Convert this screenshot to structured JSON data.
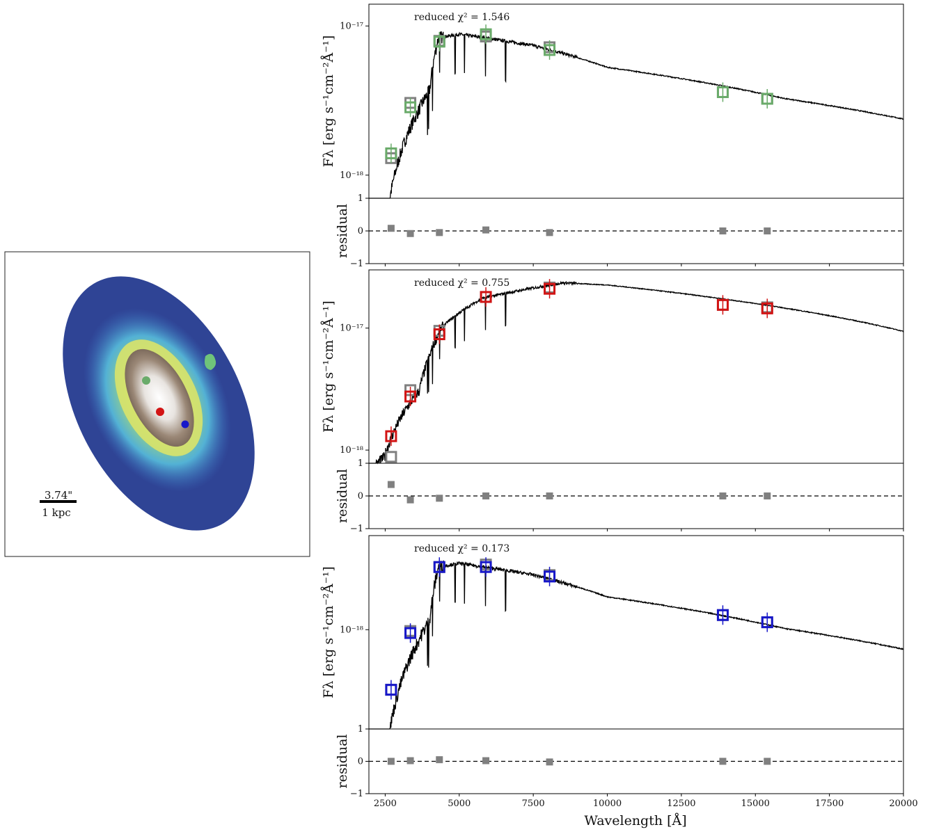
{
  "colors": {
    "model": "#000000",
    "observed": "#808080",
    "residual_marker": "#808080",
    "panel_green": "#6aab6a",
    "panel_red": "#d21414",
    "panel_blue": "#1717c9",
    "map_background": "#2f4495",
    "map_mid": "#3e9bd6",
    "map_yellow": "#d9e36a",
    "map_core": "#8a7766"
  },
  "galaxy_map": {
    "scale_arcsec": "3.74\"",
    "scale_kpc": "1 kpc",
    "markers": [
      {
        "name": "green-region-marker",
        "color": "#6aab6a"
      },
      {
        "name": "red-region-marker",
        "color": "#d21414"
      },
      {
        "name": "blue-region-marker",
        "color": "#1717c9"
      }
    ]
  },
  "chart_data": [
    {
      "type": "line",
      "panel": "top",
      "title": "",
      "chi2_label": "reduced χ² = 1.546",
      "marker_color": "#6aab6a",
      "xlabel": "Wavelength [Å]",
      "ylabel": "Fλ [erg s⁻¹cm⁻²Å⁻¹]",
      "xlim": [
        1950,
        20000
      ],
      "ylim": [
        7e-19,
        1.4e-17
      ],
      "yscale": "log",
      "y_ticks": [
        {
          "value": 1e-17,
          "label": "10⁻¹⁷"
        },
        {
          "value": 1e-18,
          "label": "10⁻¹⁸"
        }
      ],
      "model_template": "old",
      "model_norm": 8.8e-18,
      "observed_model_points": {
        "x": [
          2700,
          3350,
          4330,
          5900,
          8050,
          13900,
          15400
        ],
        "y": [
          1.3e-18,
          3.05e-18,
          7.95e-18,
          8.5e-18,
          7.2e-18,
          3.6e-18,
          3.25e-18
        ]
      },
      "observed_data_points": {
        "x": [
          2700,
          3350,
          4330,
          5900,
          8050,
          13900,
          15400
        ],
        "y": [
          1.4e-18,
          2.85e-18,
          7.85e-18,
          8.8e-18,
          6.9e-18,
          3.6e-18,
          3.25e-18
        ]
      },
      "residual": {
        "ylabel": "residual",
        "ylim": [
          -1,
          1
        ],
        "y_ticks": [
          -1,
          0,
          1
        ],
        "x": [
          2700,
          3350,
          4330,
          5900,
          8050,
          13900,
          15400
        ],
        "values": [
          0.08,
          -0.08,
          -0.05,
          0.03,
          -0.05,
          0.0,
          0.0
        ]
      }
    },
    {
      "type": "line",
      "panel": "middle",
      "title": "",
      "chi2_label": "reduced χ² = 0.755",
      "marker_color": "#d21414",
      "xlabel": "Wavelength [Å]",
      "ylabel": "Fλ [erg s⁻¹cm⁻²Å⁻¹]",
      "xlim": [
        1950,
        20000
      ],
      "ylim": [
        7.8e-19,
        3e-17
      ],
      "yscale": "log",
      "y_ticks": [
        {
          "value": 1e-17,
          "label": "10⁻¹⁷"
        },
        {
          "value": 1e-18,
          "label": "10⁻¹⁸"
        }
      ],
      "model_template": "intermediate",
      "model_norm": 2.35e-17,
      "observed_model_points": {
        "x": [
          2700,
          3350,
          4330,
          5900,
          8050,
          13900,
          15400
        ],
        "y": [
          8.8e-19,
          3.1e-18,
          9.5e-18,
          1.8e-17,
          2.15e-17,
          1.55e-17,
          1.48e-17
        ]
      },
      "observed_data_points": {
        "x": [
          2700,
          3350,
          4330,
          5900,
          8050,
          13900,
          15400
        ],
        "y": [
          1.3e-18,
          2.75e-18,
          8.9e-18,
          1.8e-17,
          2.1e-17,
          1.55e-17,
          1.45e-17
        ]
      },
      "residual": {
        "ylabel": "residual",
        "ylim": [
          -1,
          1
        ],
        "y_ticks": [
          -1,
          0,
          1
        ],
        "x": [
          2700,
          3350,
          4330,
          5900,
          8050,
          13900,
          15400
        ],
        "values": [
          0.35,
          -0.12,
          -0.07,
          0.0,
          0.0,
          0.0,
          0.0
        ]
      }
    },
    {
      "type": "line",
      "panel": "bottom",
      "title": "",
      "chi2_label": "reduced χ² = 0.173",
      "marker_color": "#1717c9",
      "xlabel": "Wavelength [Å]",
      "ylabel": "Fλ [erg s⁻¹cm⁻²Å⁻¹]",
      "xlim": [
        1950,
        20000
      ],
      "ylim": [
        2.2e-19,
        4.2e-18
      ],
      "yscale": "log",
      "y_ticks": [
        {
          "value": 1e-18,
          "label": "10⁻¹⁸"
        }
      ],
      "model_template": "old",
      "model_norm": 2.75e-18,
      "observed_model_points": {
        "x": [
          2700,
          3350,
          4330,
          5900,
          8050,
          13900,
          15400
        ],
        "y": [
          4e-19,
          9.8e-19,
          2.6e-18,
          2.7e-18,
          2.3e-18,
          1.25e-18,
          1.12e-18
        ]
      },
      "observed_data_points": {
        "x": [
          2700,
          3350,
          4330,
          5900,
          8050,
          13900,
          15400
        ],
        "y": [
          4e-19,
          9.5e-19,
          2.6e-18,
          2.6e-18,
          2.25e-18,
          1.25e-18,
          1.12e-18
        ]
      },
      "residual": {
        "ylabel": "residual",
        "ylim": [
          -1,
          1
        ],
        "y_ticks": [
          -1,
          0,
          1
        ],
        "x": [
          2700,
          3350,
          4330,
          5900,
          8050,
          13900,
          15400
        ],
        "values": [
          0.0,
          0.02,
          0.05,
          0.02,
          -0.02,
          0.0,
          0.0
        ]
      }
    }
  ],
  "x_ticks": [
    2500,
    5000,
    7500,
    10000,
    12500,
    15000,
    17500,
    20000
  ],
  "xlabel": "Wavelength [Å]"
}
